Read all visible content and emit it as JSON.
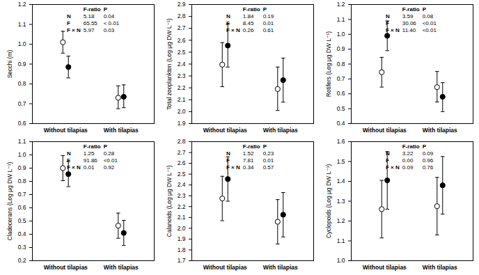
{
  "chart_data": [
    {
      "type": "scatter",
      "ylabel": "Secchi (m)",
      "categories": [
        "Without tilapias",
        "With tilapias"
      ],
      "ylim": [
        0.6,
        1.2
      ],
      "yticks": [
        0.6,
        0.7,
        0.8,
        0.9,
        {
          "value": 1,
          "label": "1.0"
        },
        1.1,
        1.2
      ],
      "series": [
        {
          "marker": "open circle",
          "color": "#000000",
          "values": [
            1.01,
            0.73
          ],
          "lower": [
            0.955,
            0.675
          ],
          "upper": [
            1.065,
            0.79
          ]
        },
        {
          "marker": "filled circle",
          "color": "#000000",
          "values": [
            0.885,
            0.735
          ],
          "lower": [
            0.83,
            0.68
          ],
          "upper": [
            0.94,
            0.795
          ]
        }
      ],
      "table": {
        "columns": [
          "F-ratio",
          "P"
        ],
        "rows": [
          [
            "N",
            "5.18",
            "0.04"
          ],
          [
            "F",
            "65.55",
            "< 0.01"
          ],
          [
            "F × N",
            "5.97",
            "0.03"
          ]
        ]
      }
    },
    {
      "type": "scatter",
      "ylabel": "Total zooplankton (Log µg DW L⁻¹)",
      "categories": [
        "Without tilapias",
        "With tilapias"
      ],
      "ylim": [
        1.9,
        2.9
      ],
      "yticks": [
        1.9,
        {
          "value": 2,
          "label": "2.0"
        },
        2.1,
        2.2,
        2.3,
        2.4,
        2.5,
        2.6,
        2.7,
        2.8,
        2.9
      ],
      "series": [
        {
          "marker": "open circle",
          "color": "#000000",
          "values": [
            2.395,
            2.19
          ],
          "lower": [
            2.21,
            2.01
          ],
          "upper": [
            2.58,
            2.375
          ]
        },
        {
          "marker": "filled circle",
          "color": "#000000",
          "values": [
            2.555,
            2.265
          ],
          "lower": [
            2.375,
            2.08
          ],
          "upper": [
            2.735,
            2.45
          ]
        }
      ],
      "table": {
        "columns": [
          "F-ratio",
          "P"
        ],
        "rows": [
          [
            "N",
            "1.84",
            "0.19"
          ],
          [
            "F",
            "8.45",
            "0.01"
          ],
          [
            "F × N",
            "0.26",
            "0.61"
          ]
        ]
      }
    },
    {
      "type": "scatter",
      "ylabel": "Rotifers (Log µg DW L⁻¹)",
      "categories": [
        "Without tilapias",
        "With tilapias"
      ],
      "ylim": [
        0.4,
        1.2
      ],
      "yticks": [
        0.4,
        0.5,
        0.6,
        0.7,
        0.8,
        0.9,
        {
          "value": 1,
          "label": "1.0"
        },
        1.1,
        1.2
      ],
      "series": [
        {
          "marker": "open circle",
          "color": "#000000",
          "values": [
            0.745,
            0.645
          ],
          "lower": [
            0.645,
            0.545
          ],
          "upper": [
            0.845,
            0.75
          ]
        },
        {
          "marker": "filled circle",
          "color": "#000000",
          "values": [
            0.99,
            0.58
          ],
          "lower": [
            0.89,
            0.48
          ],
          "upper": [
            1.09,
            0.675
          ]
        }
      ],
      "table": {
        "columns": [
          "F-ratio",
          "P"
        ],
        "rows": [
          [
            "N",
            "3.59",
            "0.08"
          ],
          [
            "F",
            "30.06",
            "<0.01"
          ],
          [
            "F × N",
            "11.40",
            "<0.01"
          ]
        ]
      }
    },
    {
      "type": "scatter",
      "ylabel": "Cladocerans (Log µg DW L⁻¹)",
      "categories": [
        "Without tilapias",
        "With tilapias"
      ],
      "ylim": [
        0.2,
        1.1
      ],
      "yticks": [
        0.2,
        0.3,
        0.4,
        0.5,
        0.6,
        0.7,
        0.8,
        0.9,
        {
          "value": 1,
          "label": "1.0"
        },
        1.1
      ],
      "series": [
        {
          "marker": "open circle",
          "color": "#000000",
          "values": [
            0.9,
            0.465
          ],
          "lower": [
            0.805,
            0.37
          ],
          "upper": [
            0.995,
            0.56
          ]
        },
        {
          "marker": "filled circle",
          "color": "#000000",
          "values": [
            0.855,
            0.41
          ],
          "lower": [
            0.76,
            0.315
          ],
          "upper": [
            0.95,
            0.505
          ]
        }
      ],
      "table": {
        "columns": [
          "F-ratio",
          "P"
        ],
        "rows": [
          [
            "N",
            "1.25",
            "0.28"
          ],
          [
            "F",
            "91.86",
            "<0.01"
          ],
          [
            "F × N",
            "0.01",
            "0.92"
          ]
        ]
      }
    },
    {
      "type": "scatter",
      "ylabel": "Calanoids (Log µg DW L⁻¹)",
      "categories": [
        "Without tilapias",
        "With tilapias"
      ],
      "ylim": [
        1.7,
        2.8
      ],
      "yticks": [
        1.7,
        1.8,
        1.9,
        {
          "value": 2,
          "label": "2.0"
        },
        2.1,
        2.2,
        2.3,
        2.4,
        2.5,
        2.6,
        2.7,
        2.8
      ],
      "series": [
        {
          "marker": "open circle",
          "color": "#000000",
          "values": [
            2.275,
            2.06
          ],
          "lower": [
            2.07,
            1.855
          ],
          "upper": [
            2.48,
            2.265
          ]
        },
        {
          "marker": "filled circle",
          "color": "#000000",
          "values": [
            2.455,
            2.125
          ],
          "lower": [
            2.25,
            1.92
          ],
          "upper": [
            2.66,
            2.33
          ]
        }
      ],
      "table": {
        "columns": [
          "F-ratio",
          "P"
        ],
        "rows": [
          [
            "N",
            "1.52",
            "0.23"
          ],
          [
            "F",
            "7.81",
            "0.01"
          ],
          [
            "F × N",
            "0.34",
            "0.57"
          ]
        ]
      }
    },
    {
      "type": "scatter",
      "ylabel": "Cyclopoids (Log µg DW L⁻¹)",
      "categories": [
        "Without tilapias",
        "With tilapias"
      ],
      "ylim": [
        1,
        1.6
      ],
      "yticks": [
        {
          "value": 1,
          "label": "1.0"
        },
        1.1,
        1.2,
        1.3,
        1.4,
        1.5,
        1.6
      ],
      "series": [
        {
          "marker": "open circle",
          "color": "#000000",
          "values": [
            1.26,
            1.275
          ],
          "lower": [
            1.115,
            1.13
          ],
          "upper": [
            1.405,
            1.42
          ]
        },
        {
          "marker": "filled circle",
          "color": "#000000",
          "values": [
            1.405,
            1.38
          ],
          "lower": [
            1.26,
            1.235
          ],
          "upper": [
            1.55,
            1.525
          ]
        }
      ],
      "table": {
        "columns": [
          "F-ratio",
          "P"
        ],
        "rows": [
          [
            "N",
            "3.22",
            "0.09"
          ],
          [
            "F",
            "0.00",
            "0.96"
          ],
          [
            "F × N",
            "0.09",
            "0.76"
          ]
        ]
      }
    }
  ]
}
